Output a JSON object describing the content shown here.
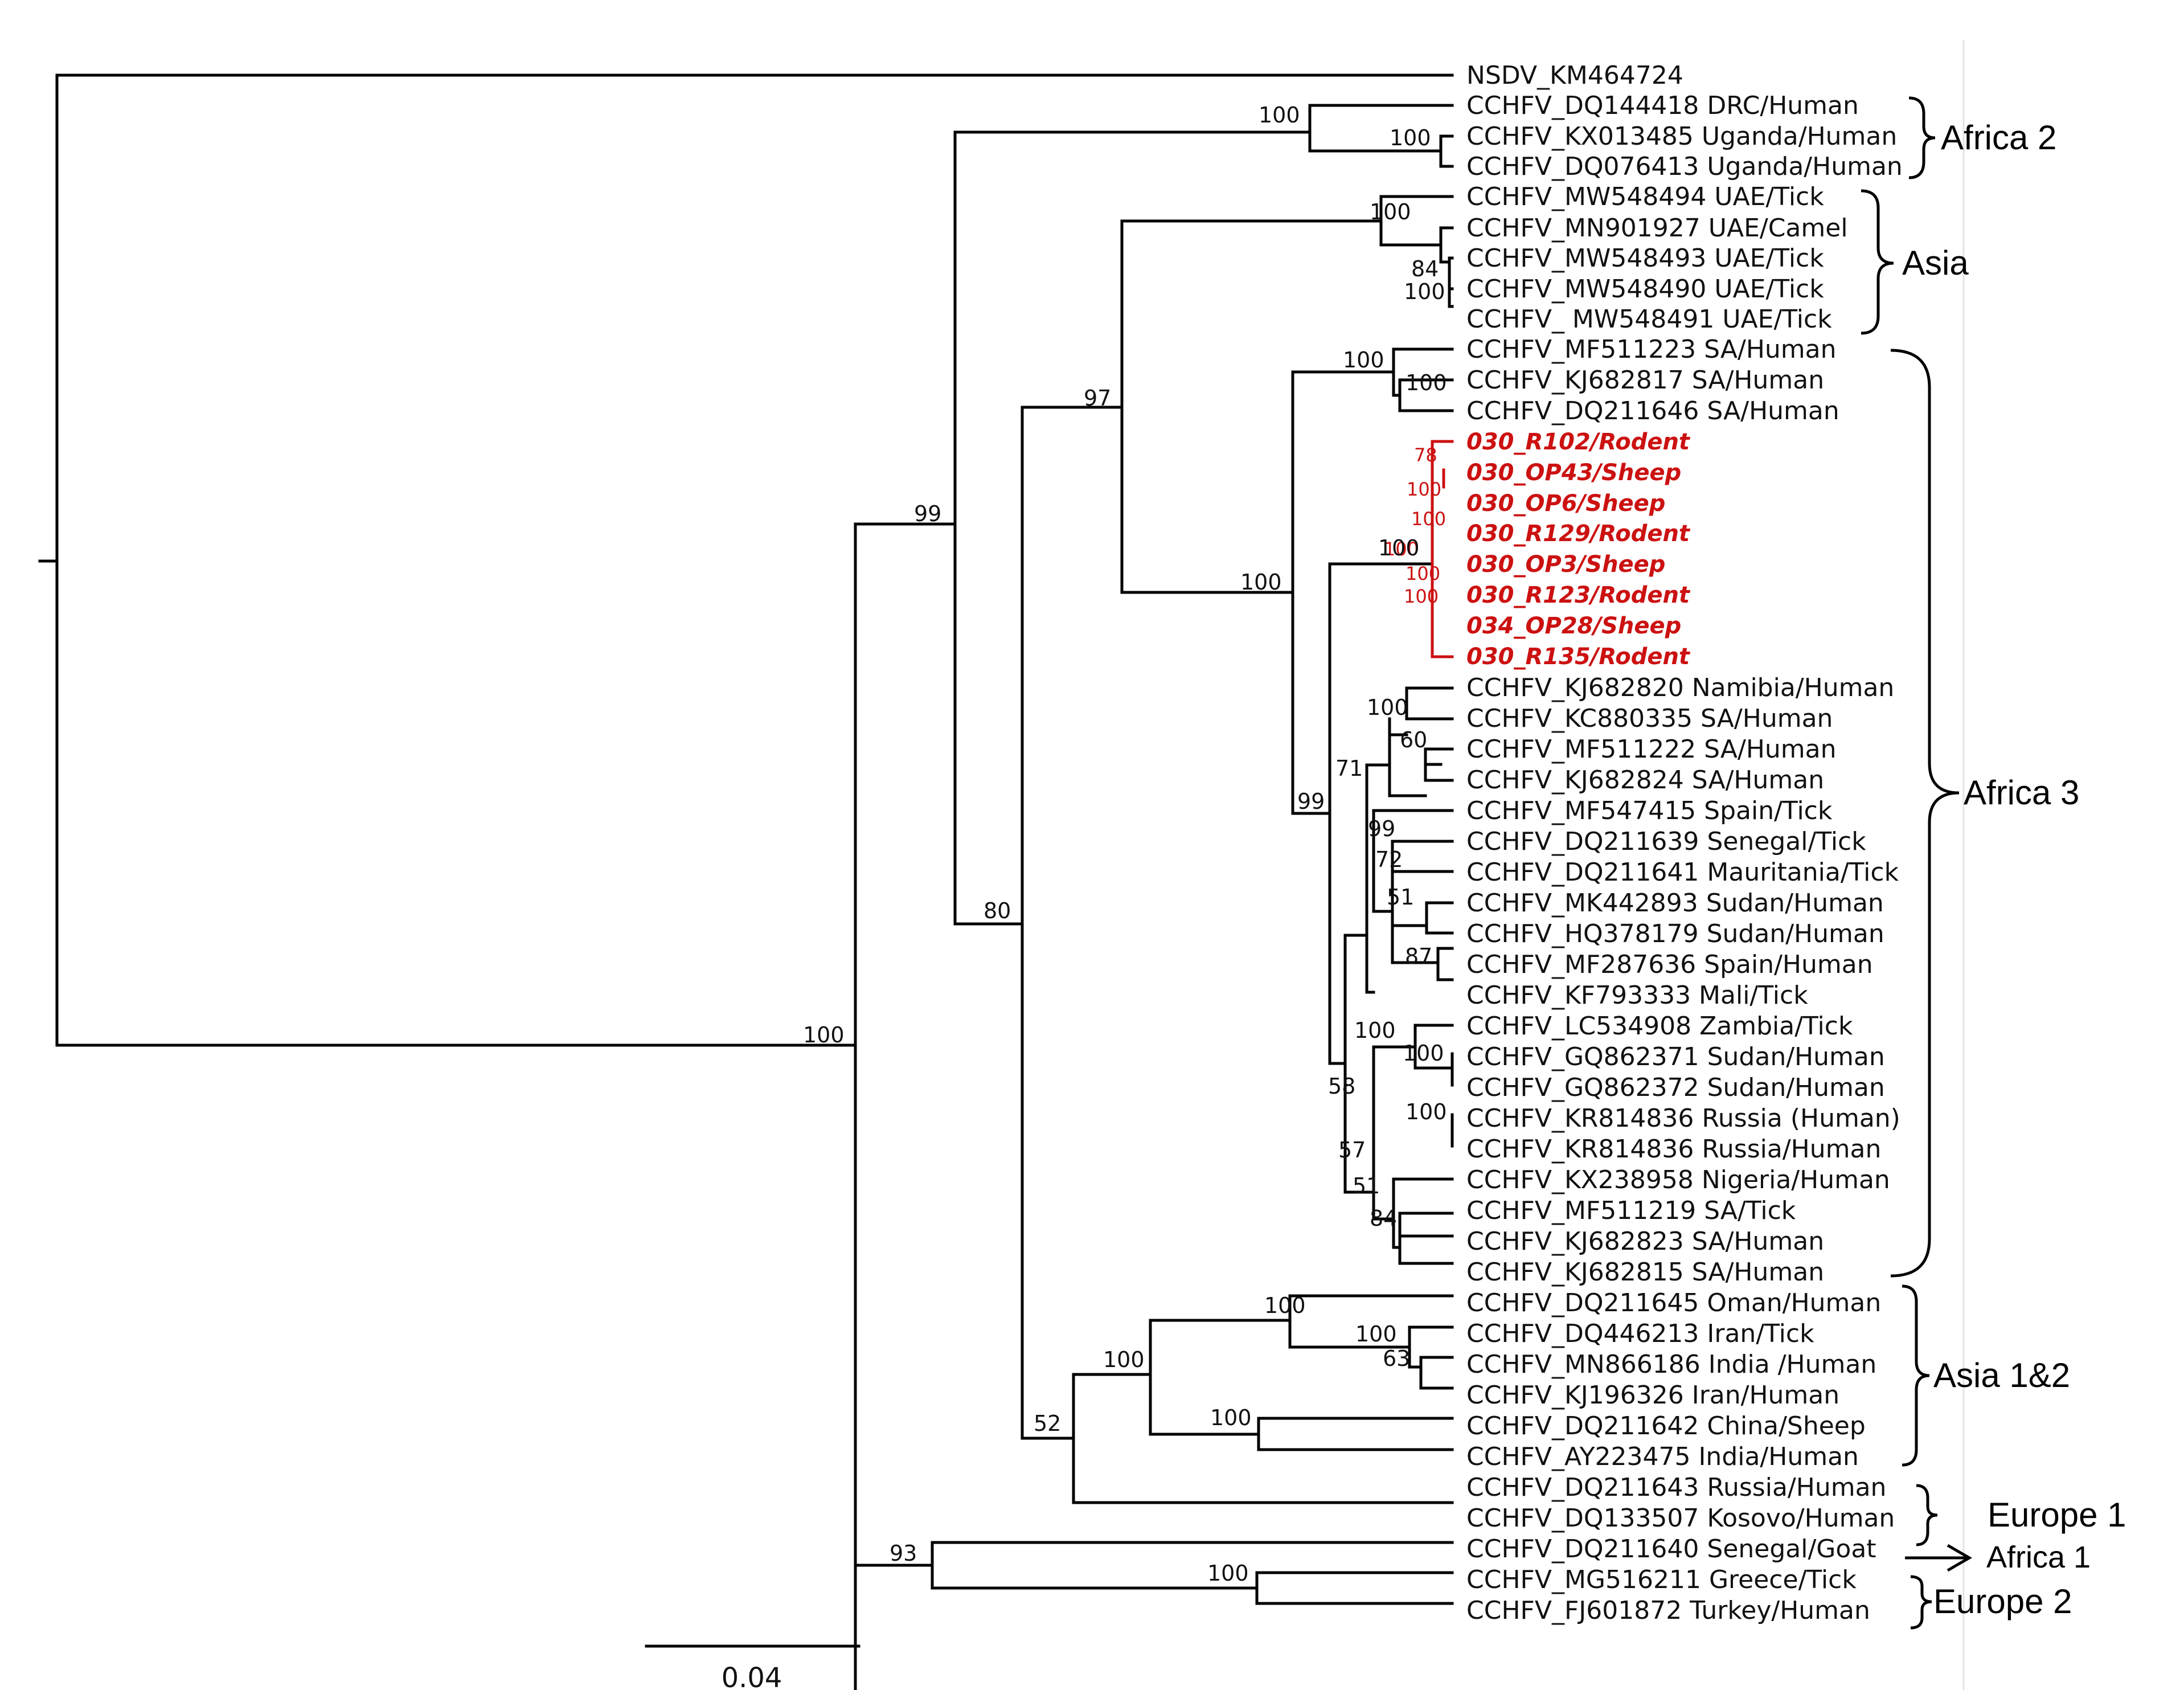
{
  "figure": {
    "tips": [
      "NSDV_KM464724",
      "CCHFV_DQ144418 DRC/Human",
      "CCHFV_KX013485 Uganda/Human",
      "CCHFV_DQ076413 Uganda/Human",
      "CCHFV_MW548494 UAE/Tick",
      "CCHFV_MN901927 UAE/Camel",
      "CCHFV_MW548493 UAE/Tick",
      "CCHFV_MW548490 UAE/Tick",
      "CCHFV_ MW548491 UAE/Tick",
      "CCHFV_MF511223 SA/Human",
      "CCHFV_KJ682817 SA/Human",
      "CCHFV_DQ211646 SA/Human",
      "030_R102/Rodent",
      "030_OP43/Sheep",
      "030_OP6/Sheep",
      "030_R129/Rodent",
      "030_OP3/Sheep",
      "030_R123/Rodent",
      "034_OP28/Sheep",
      "030_R135/Rodent",
      "CCHFV_KJ682820 Namibia/Human",
      "CCHFV_KC880335 SA/Human",
      "CCHFV_MF511222 SA/Human",
      "CCHFV_KJ682824 SA/Human",
      "CCHFV_MF547415 Spain/Tick",
      "CCHFV_DQ211639 Senegal/Tick",
      "CCHFV_DQ211641 Mauritania/Tick",
      "CCHFV_MK442893 Sudan/Human",
      "CCHFV_HQ378179 Sudan/Human",
      "CCHFV_MF287636 Spain/Human",
      "CCHFV_KF793333 Mali/Tick",
      "CCHFV_LC534908 Zambia/Tick",
      "CCHFV_GQ862371 Sudan/Human",
      "CCHFV_GQ862372 Sudan/Human",
      "CCHFV_KR814836 Russia (Human)",
      "CCHFV_KR814836 Russia/Human",
      "CCHFV_KX238958 Nigeria/Human",
      "CCHFV_MF511219 SA/Tick",
      "CCHFV_KJ682823 SA/Human",
      "CCHFV_KJ682815 SA/Human",
      "CCHFV_DQ211645 Oman/Human",
      "CCHFV_DQ446213 Iran/Tick",
      "CCHFV_MN866186 India /Human",
      "CCHFV_KJ196326 Iran/Human",
      "CCHFV_DQ211642 China/Sheep",
      "CCHFV_AY223475 India/Human",
      "CCHFV_DQ211643 Russia/Human",
      "CCHFV_DQ133507 Kosovo/Human",
      "CCHFV_DQ211640 Senegal/Goat",
      "CCHFV_MG516211 Greece/Tick",
      "CCHFV_FJ601872 Turkey/Human"
    ],
    "supports": [
      "100",
      "100",
      "100",
      "100",
      "84",
      "100",
      "99",
      "97",
      "100",
      "100",
      "100",
      "78",
      "100",
      "100",
      "100",
      "100",
      "100",
      "100",
      "71",
      "99",
      "100",
      "60",
      "99",
      "72",
      "51",
      "87",
      "80",
      "100",
      "100",
      "58",
      "57",
      "51",
      "84",
      "100",
      "100",
      "100",
      "63",
      "100",
      "52",
      "100",
      "93",
      "100"
    ],
    "clades": [
      "Africa 2",
      "Asia",
      "Africa 3",
      "Asia 1&2",
      "Europe 1",
      "Africa 1",
      "Europe 2"
    ],
    "scale_bar": "0.04",
    "colors": {
      "study_isolates": "#cc1111",
      "branches": "#000000"
    }
  }
}
